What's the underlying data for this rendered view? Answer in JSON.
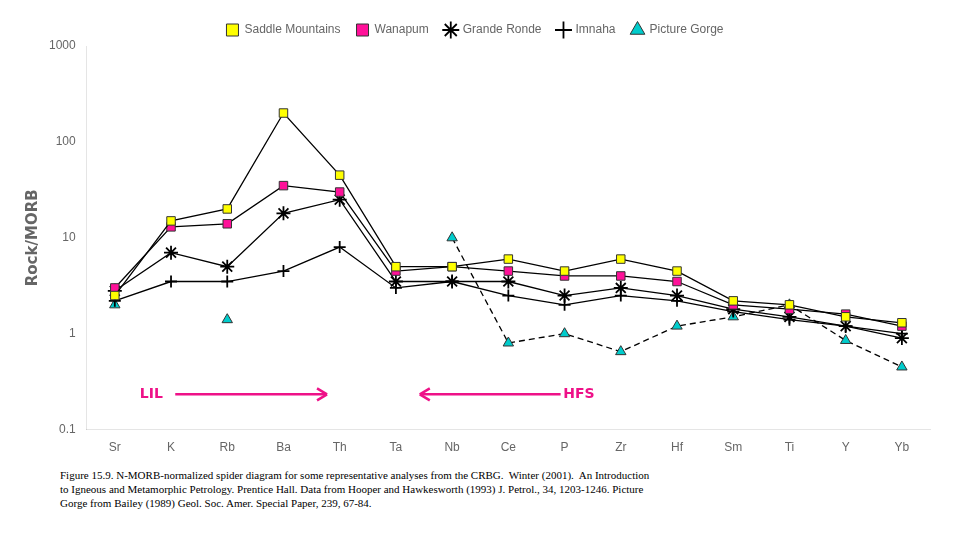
{
  "chart_data": {
    "type": "line",
    "categories": [
      "Sr",
      "K",
      "Rb",
      "Ba",
      "Th",
      "Ta",
      "Nb",
      "Ce",
      "P",
      "Zr",
      "Hf",
      "Sm",
      "Ti",
      "Y",
      "Yb"
    ],
    "series": [
      {
        "name": "Saddle Mountains",
        "color": "#FFFF00",
        "marker": "square",
        "line_style": "solid",
        "values": [
          2.5,
          15,
          20,
          200,
          45,
          5.0,
          5.0,
          6.0,
          4.5,
          6.0,
          4.5,
          2.2,
          2.0,
          1.5,
          1.3
        ]
      },
      {
        "name": "Wanapum",
        "color": "#FF1199",
        "marker": "square",
        "line_style": "solid",
        "values": [
          3.0,
          13,
          14,
          35,
          30,
          4.5,
          5.0,
          4.5,
          4.0,
          4.0,
          3.5,
          2.0,
          1.8,
          1.6,
          1.2
        ]
      },
      {
        "name": "Grande Ronde",
        "color": "#000000",
        "marker": "star",
        "line_style": "solid",
        "values": [
          2.8,
          7.0,
          5.0,
          18,
          25,
          3.5,
          3.5,
          3.5,
          2.5,
          3.0,
          2.5,
          1.8,
          1.5,
          1.2,
          0.9
        ]
      },
      {
        "name": "Imnaha",
        "color": "#000000",
        "marker": "plus",
        "line_style": "solid",
        "values": [
          2.2,
          3.5,
          3.5,
          4.5,
          8.0,
          3.0,
          3.5,
          2.5,
          2.0,
          2.5,
          2.2,
          1.7,
          1.4,
          1.2,
          1.0
        ]
      },
      {
        "name": "Picture Gorge",
        "color": "#00CCCC",
        "marker": "triangle",
        "line_style": "dashed",
        "values": [
          2.0,
          null,
          1.4,
          null,
          null,
          null,
          10.0,
          0.8,
          1.0,
          0.65,
          1.2,
          1.5,
          2.0,
          0.85,
          0.45
        ]
      }
    ],
    "ylabel": "Rock/MORB",
    "log": "y",
    "ylim": [
      0.1,
      1000
    ],
    "yticks": [
      0.1,
      1,
      10,
      100,
      1000
    ],
    "grid": false,
    "legend": "top",
    "annotations": [
      {
        "text": "LIL",
        "arrow": "right",
        "color": "#EE1188"
      },
      {
        "text": "HFS",
        "arrow": "left",
        "color": "#EE1188"
      }
    ],
    "caption": "Figure 15.9. N-MORB-normalized spider diagram for some representative analyses from the CRBG.  Winter (2001).  An Introduction\nto Igneous and Metamorphic Petrology. Prentice Hall. Data from Hooper and Hawkesworth (1993) J. Petrol., 34, 1203-1246. Picture\nGorge from Bailey (1989) Geol. Soc. Amer. Special Paper, 239, 67-84."
  }
}
